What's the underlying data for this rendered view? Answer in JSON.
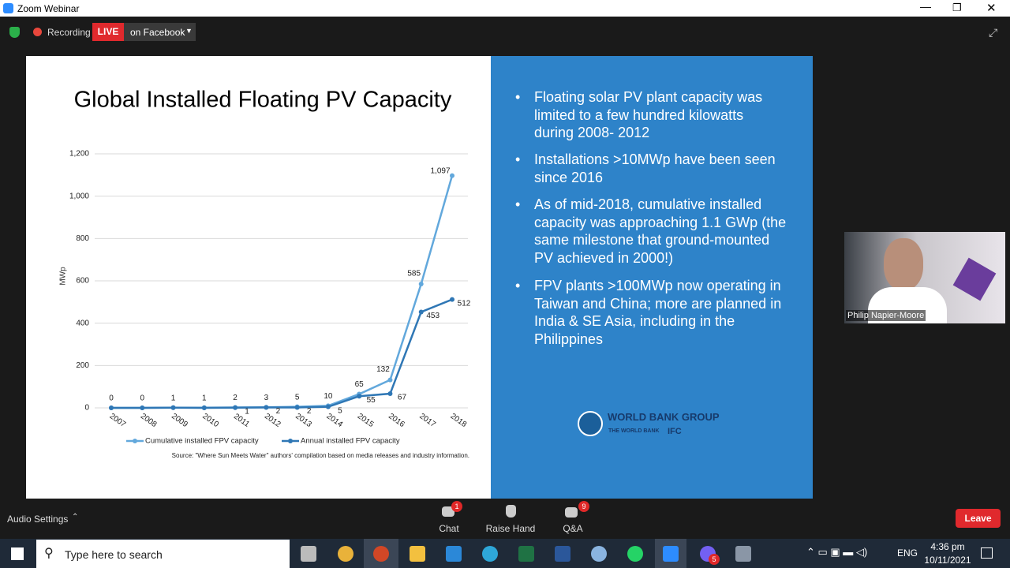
{
  "window": {
    "title": "Zoom Webinar"
  },
  "top_bar": {
    "recording": "Recording",
    "live": "LIVE",
    "stream": "on Facebook"
  },
  "chart_data": {
    "type": "line",
    "title": "Global Installed Floating PV Capacity",
    "ylabel": "MWp",
    "source": "Source: \"Where Sun Meets Water\" authors' compilation based on media releases and industry information.",
    "categories": [
      "2007",
      "2008",
      "2009",
      "2010",
      "2011",
      "2012",
      "2013",
      "2014",
      "2015",
      "2016",
      "2017",
      "2018"
    ],
    "series": [
      {
        "name": "Cumulative installed FPV capacity",
        "color": "#62a8dc",
        "values": [
          0,
          0,
          1,
          1,
          2,
          3,
          5,
          10,
          65,
          132,
          585,
          1097
        ],
        "value_labels": [
          "0",
          "0",
          "1",
          "1",
          "2",
          "3",
          "5",
          "10",
          "65",
          "132",
          "585",
          "1,097"
        ]
      },
      {
        "name": "Annual installed FPV capacity",
        "color": "#2f77b5",
        "values": [
          0,
          0,
          1,
          0,
          1,
          2,
          2,
          5,
          55,
          67,
          453,
          512
        ],
        "value_labels": [
          null,
          null,
          null,
          null,
          "1",
          "2",
          "2",
          "5",
          "55",
          "67",
          "453",
          "512"
        ]
      }
    ],
    "ylim": [
      0,
      1200
    ],
    "yticks": [
      0,
      200,
      400,
      600,
      800,
      {
        "value": 1000,
        "label": "1,000"
      },
      {
        "value": 1200,
        "label": "1,200"
      }
    ],
    "grid": true,
    "legend": "bottom"
  },
  "panel": {
    "bullets": [
      "Floating solar PV plant capacity was limited to a few hundred kilowatts during 2008- 2012",
      "Installations >10MWp have been seen since 2016",
      "As of mid-2018, cumulative installed capacity was approaching 1.1 GWp (the same milestone that ground-mounted PV achieved in 2000!)",
      "FPV plants >100MWp now operating in Taiwan and China; more are planned in India & SE Asia, including in the Philippines"
    ],
    "logo": {
      "name": "WORLD BANK GROUP",
      "sub1": "THE WORLD BANK",
      "sub2": "IFC"
    }
  },
  "video": {
    "name": "Philip Napier-Moore"
  },
  "controls": {
    "audio": "Audio Settings",
    "chat": "Chat",
    "chat_badge": 1,
    "raise": "Raise Hand",
    "qa": "Q&A",
    "qa_badge": 9,
    "leave": "Leave"
  },
  "taskbar": {
    "search": "Type here to search",
    "lang": "ENG",
    "time": "4:36 pm",
    "date": "10/11/2021",
    "badge": 5
  }
}
